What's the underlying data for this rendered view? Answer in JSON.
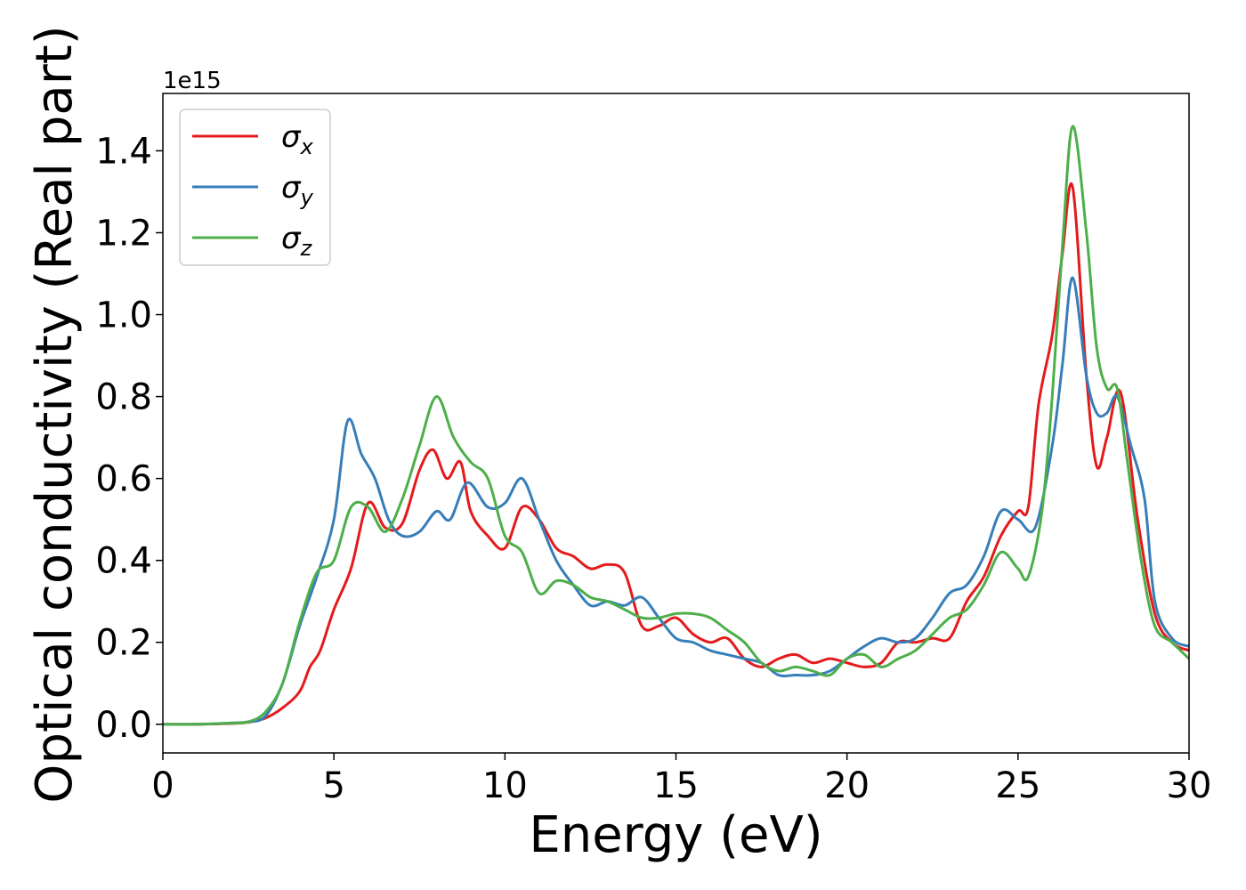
{
  "chart_data": {
    "type": "line",
    "title": "",
    "xlabel": "Energy (eV)",
    "ylabel": "Optical conductivity (Real part)",
    "offset_text": "1e15",
    "xlim": [
      0,
      30
    ],
    "ylim": [
      -0.07,
      1.54
    ],
    "x_ticks": [
      0,
      5,
      10,
      15,
      20,
      25,
      30
    ],
    "x_tick_labels": [
      "0",
      "5",
      "10",
      "15",
      "20",
      "25",
      "30"
    ],
    "y_ticks": [
      0.0,
      0.2,
      0.4,
      0.6,
      0.8,
      1.0,
      1.2,
      1.4
    ],
    "y_tick_labels": [
      "0.0",
      "0.2",
      "0.4",
      "0.6",
      "0.8",
      "1.0",
      "1.2",
      "1.4"
    ],
    "grid": false,
    "legend": {
      "position": "top-left"
    },
    "series": [
      {
        "name": "σx",
        "symbol": "σ",
        "subscript": "x",
        "color": "#e41a1c",
        "x": [
          0,
          1,
          2,
          2.5,
          3,
          3.5,
          4,
          4.3,
          4.6,
          5,
          5.5,
          6,
          6.5,
          7,
          7.5,
          7.9,
          8.3,
          8.7,
          9,
          9.5,
          10,
          10.5,
          11,
          11.5,
          12,
          12.5,
          13,
          13.5,
          14,
          14.5,
          15,
          15.5,
          16,
          16.5,
          17,
          17.5,
          18,
          18.5,
          19,
          19.5,
          20,
          20.5,
          21,
          21.5,
          22,
          22.5,
          23,
          23.5,
          24,
          24.5,
          25,
          25.3,
          25.6,
          26,
          26.3,
          26.6,
          27,
          27.3,
          27.6,
          28,
          28.5,
          29,
          29.5,
          30
        ],
        "y": [
          0,
          0,
          0.002,
          0.005,
          0.015,
          0.04,
          0.08,
          0.14,
          0.18,
          0.28,
          0.38,
          0.54,
          0.48,
          0.49,
          0.62,
          0.67,
          0.6,
          0.64,
          0.52,
          0.46,
          0.43,
          0.53,
          0.5,
          0.43,
          0.41,
          0.38,
          0.39,
          0.37,
          0.24,
          0.24,
          0.26,
          0.22,
          0.2,
          0.21,
          0.16,
          0.14,
          0.16,
          0.17,
          0.15,
          0.16,
          0.15,
          0.14,
          0.15,
          0.2,
          0.2,
          0.21,
          0.21,
          0.3,
          0.36,
          0.46,
          0.52,
          0.53,
          0.78,
          0.95,
          1.15,
          1.31,
          0.85,
          0.63,
          0.7,
          0.81,
          0.5,
          0.27,
          0.2,
          0.18
        ]
      },
      {
        "name": "σy",
        "symbol": "σ",
        "subscript": "y",
        "color": "#377eb8",
        "x": [
          0,
          1,
          2,
          2.5,
          3,
          3.5,
          4,
          4.5,
          5,
          5.4,
          5.8,
          6.2,
          6.6,
          7,
          7.5,
          8,
          8.4,
          8.9,
          9.5,
          10,
          10.5,
          11,
          11.5,
          12,
          12.5,
          13,
          13.5,
          14,
          14.5,
          15,
          15.5,
          16,
          16.5,
          17,
          17.5,
          18,
          18.5,
          19,
          19.5,
          20,
          20.5,
          21,
          21.5,
          22,
          22.5,
          23,
          23.5,
          24,
          24.5,
          25,
          25.5,
          26,
          26.3,
          26.6,
          27,
          27.3,
          27.6,
          27.9,
          28.3,
          28.7,
          29,
          29.5,
          30
        ],
        "y": [
          0,
          0,
          0.003,
          0.006,
          0.02,
          0.1,
          0.24,
          0.36,
          0.5,
          0.74,
          0.66,
          0.6,
          0.5,
          0.46,
          0.47,
          0.52,
          0.5,
          0.59,
          0.53,
          0.54,
          0.6,
          0.5,
          0.4,
          0.34,
          0.29,
          0.3,
          0.29,
          0.31,
          0.26,
          0.21,
          0.2,
          0.18,
          0.17,
          0.16,
          0.15,
          0.12,
          0.12,
          0.12,
          0.13,
          0.16,
          0.19,
          0.21,
          0.2,
          0.21,
          0.26,
          0.32,
          0.34,
          0.41,
          0.52,
          0.5,
          0.48,
          0.68,
          0.88,
          1.09,
          0.85,
          0.76,
          0.76,
          0.8,
          0.68,
          0.55,
          0.3,
          0.21,
          0.19
        ]
      },
      {
        "name": "σz",
        "symbol": "σ",
        "subscript": "z",
        "color": "#4daf4a",
        "x": [
          0,
          1,
          2,
          2.5,
          3,
          3.5,
          4,
          4.5,
          5,
          5.5,
          6,
          6.5,
          7,
          7.5,
          8,
          8.5,
          9,
          9.5,
          10,
          10.5,
          11,
          11.5,
          12,
          12.5,
          13,
          13.5,
          14,
          14.5,
          15,
          15.5,
          16,
          16.5,
          17,
          17.5,
          18,
          18.5,
          19,
          19.5,
          20,
          20.5,
          21,
          21.5,
          22,
          22.5,
          23,
          23.5,
          24,
          24.5,
          25,
          25.3,
          25.7,
          26,
          26.3,
          26.6,
          27,
          27.3,
          27.6,
          27.9,
          28.2,
          28.6,
          29,
          29.5,
          30
        ],
        "y": [
          0,
          0,
          0.003,
          0.006,
          0.03,
          0.1,
          0.25,
          0.37,
          0.4,
          0.53,
          0.53,
          0.47,
          0.55,
          0.68,
          0.8,
          0.7,
          0.64,
          0.6,
          0.46,
          0.42,
          0.32,
          0.35,
          0.34,
          0.31,
          0.3,
          0.28,
          0.26,
          0.26,
          0.27,
          0.27,
          0.26,
          0.23,
          0.2,
          0.15,
          0.13,
          0.14,
          0.13,
          0.12,
          0.16,
          0.17,
          0.14,
          0.16,
          0.18,
          0.22,
          0.26,
          0.28,
          0.34,
          0.42,
          0.38,
          0.36,
          0.52,
          0.8,
          1.17,
          1.46,
          1.2,
          0.92,
          0.82,
          0.82,
          0.64,
          0.4,
          0.24,
          0.2,
          0.16
        ]
      }
    ]
  }
}
